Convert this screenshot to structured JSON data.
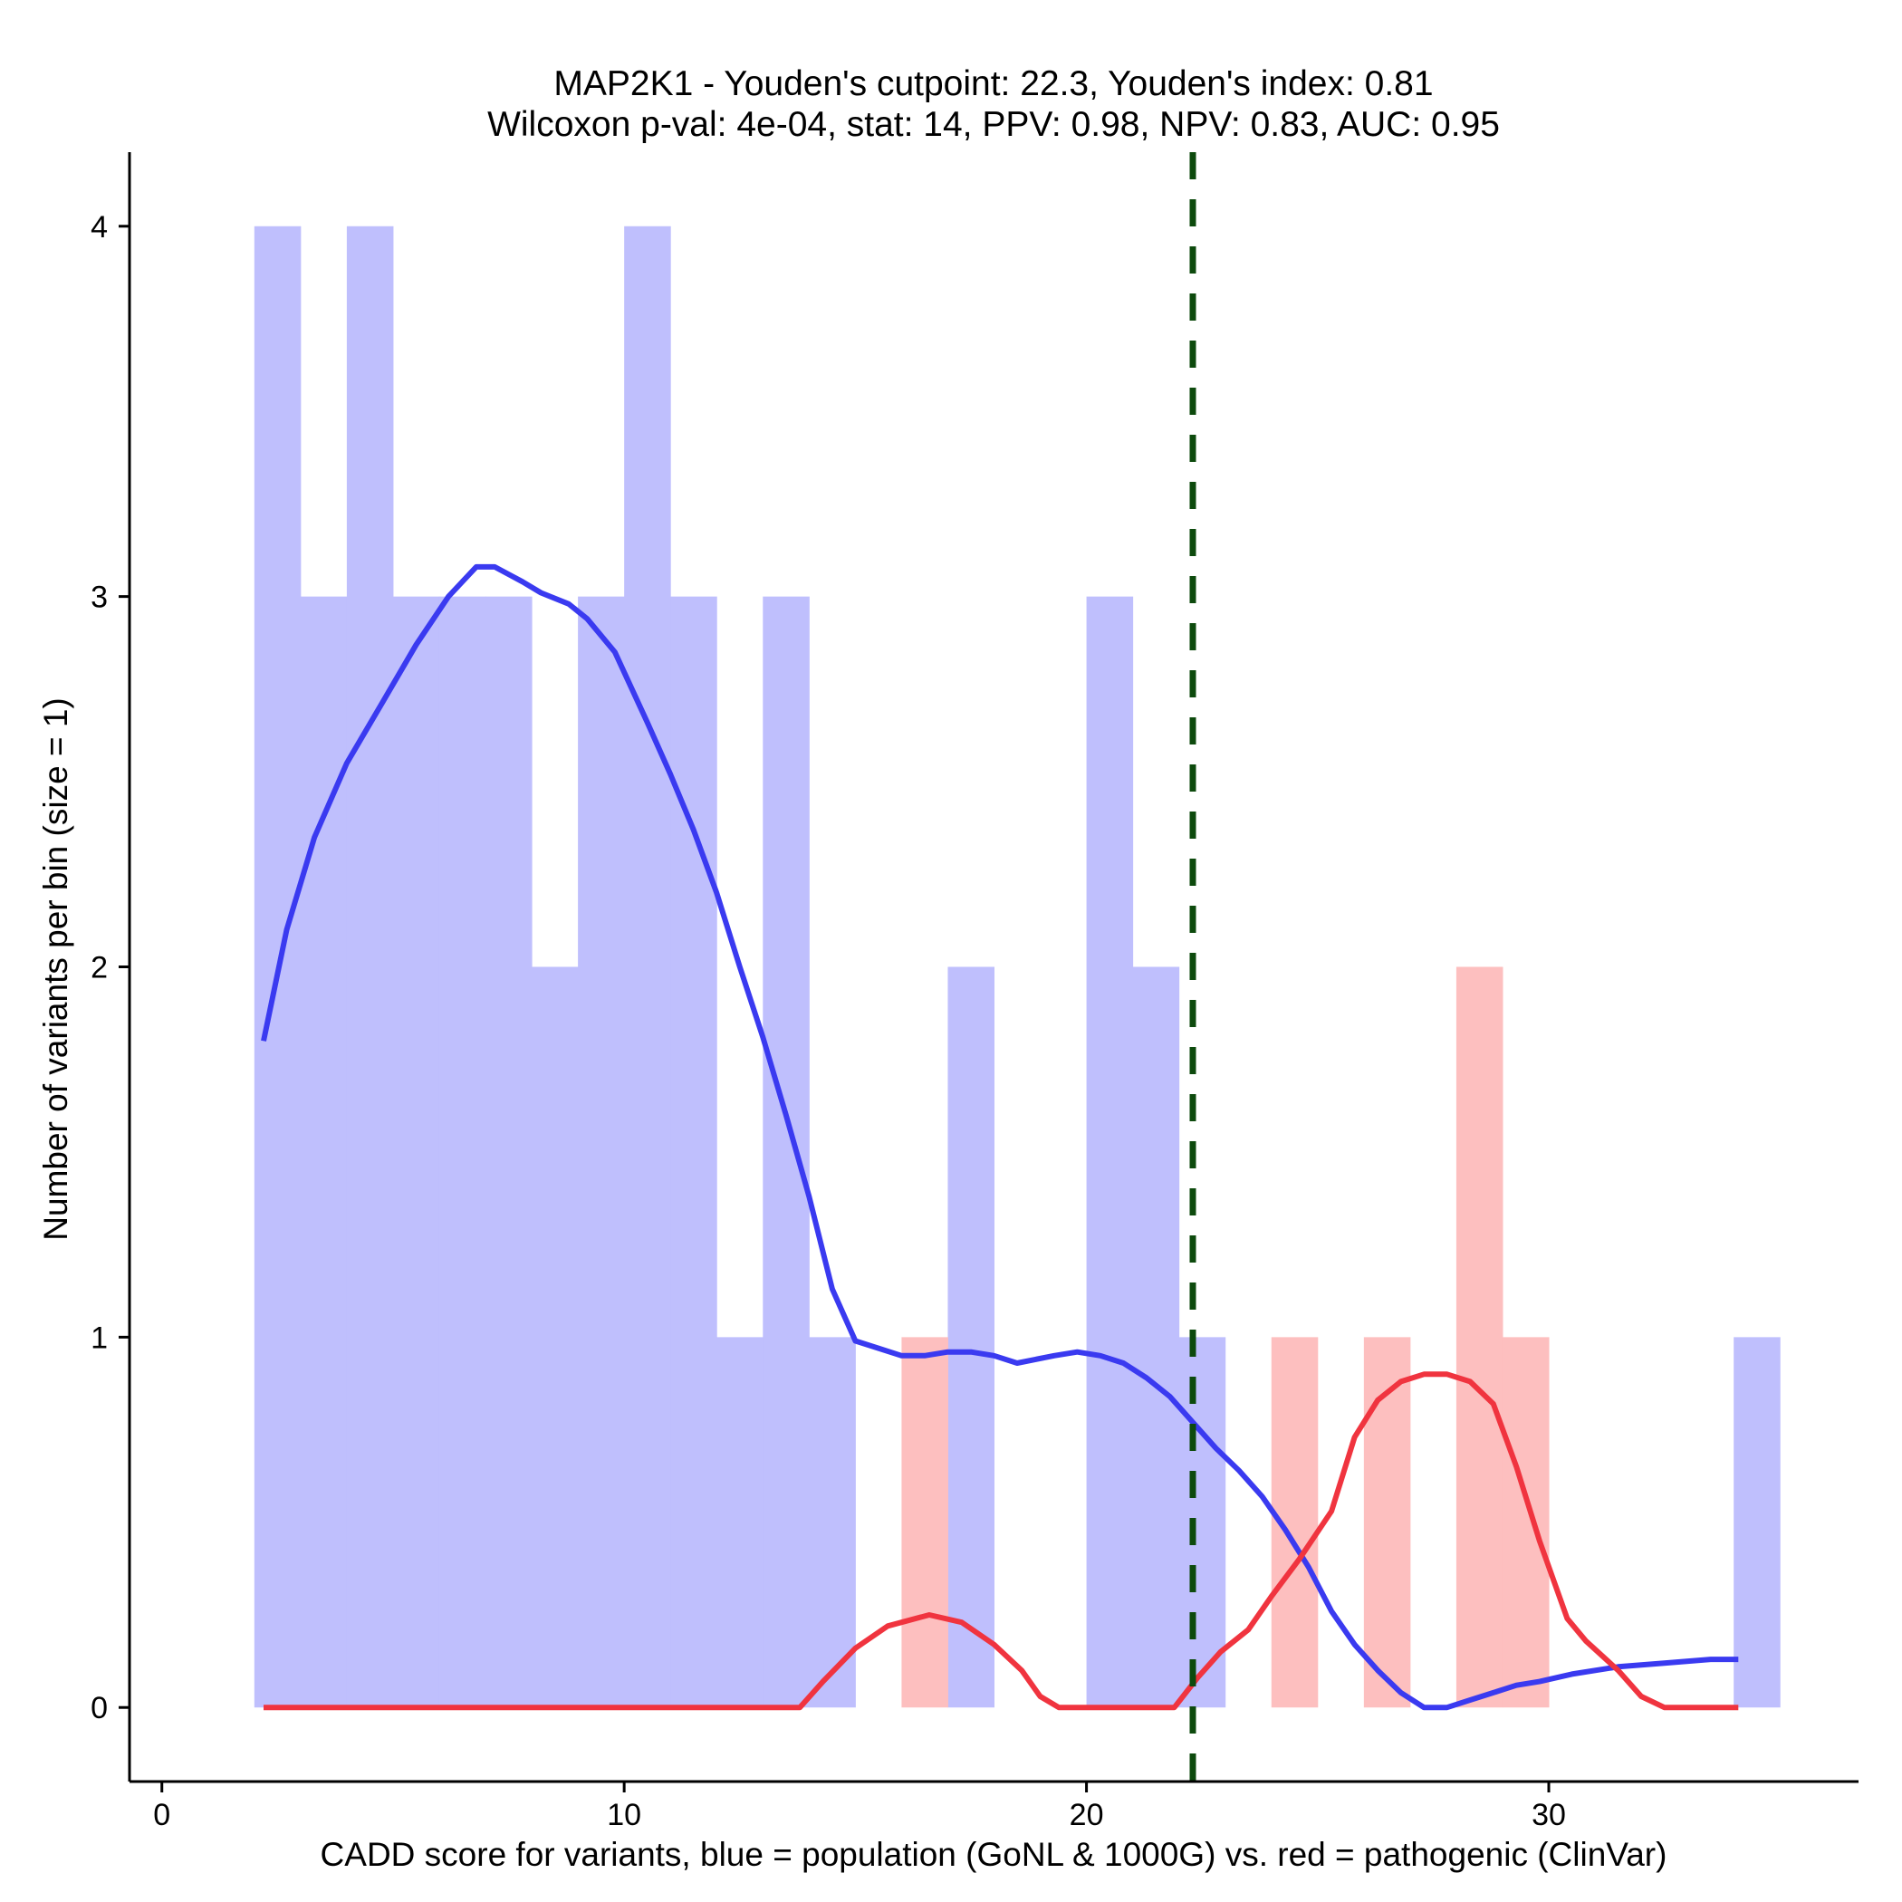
{
  "chart_data": {
    "type": "histogram",
    "title": "MAP2K1 - Youden's cutpoint: 22.3, Youden's index: 0.81",
    "subtitle": "Wilcoxon p-val: 4e-04, stat: 14, PPV: 0.98, NPV: 0.83, AUC: 0.95",
    "xlabel": "CADD score for variants, blue = population (GoNL & 1000G) vs. red = pathogenic (ClinVar)",
    "ylabel": "Number of variants per bin (size = 1)",
    "xlim": [
      -0.7,
      36.7
    ],
    "ylim": [
      -0.2,
      4.2
    ],
    "xticks": [
      0,
      10,
      20,
      30
    ],
    "yticks": [
      0,
      1,
      2,
      3,
      4
    ],
    "bin_width": 1,
    "cutpoint": 22.3,
    "colors": {
      "population_bar": "#bfbffd",
      "pathogenic_bar": "#fdbfbf",
      "population_line": "#3a3af0",
      "pathogenic_line": "#f0343f",
      "cutpoint_line": "#0d4a0d",
      "axis": "#000000"
    },
    "series": [
      {
        "name": "population (GoNL & 1000G)",
        "kind": "bars",
        "bins": [
          {
            "start": 2,
            "count": 4
          },
          {
            "start": 3,
            "count": 3
          },
          {
            "start": 4,
            "count": 4
          },
          {
            "start": 5,
            "count": 3
          },
          {
            "start": 6,
            "count": 3
          },
          {
            "start": 7,
            "count": 3
          },
          {
            "start": 8,
            "count": 2
          },
          {
            "start": 9,
            "count": 3
          },
          {
            "start": 10,
            "count": 4
          },
          {
            "start": 11,
            "count": 3
          },
          {
            "start": 12,
            "count": 1
          },
          {
            "start": 13,
            "count": 3
          },
          {
            "start": 14,
            "count": 1
          },
          {
            "start": 17,
            "count": 2
          },
          {
            "start": 20,
            "count": 3
          },
          {
            "start": 21,
            "count": 2
          },
          {
            "start": 22,
            "count": 1
          },
          {
            "start": 34,
            "count": 1
          }
        ]
      },
      {
        "name": "pathogenic (ClinVar)",
        "kind": "bars",
        "bins": [
          {
            "start": 16,
            "count": 1
          },
          {
            "start": 24,
            "count": 1
          },
          {
            "start": 26,
            "count": 1
          },
          {
            "start": 28,
            "count": 2
          },
          {
            "start": 29,
            "count": 1
          }
        ]
      },
      {
        "name": "population density",
        "kind": "line",
        "x": [
          2.2,
          2.7,
          3.3,
          4.0,
          4.8,
          5.5,
          6.2,
          6.8,
          7.2,
          7.5,
          7.8,
          8.2,
          8.8,
          9.2,
          9.8,
          10.5,
          11.0,
          11.5,
          12.0,
          12.5,
          13.0,
          13.5,
          14.0,
          14.5,
          15.0,
          15.5,
          16.0,
          16.5,
          17.0,
          17.5,
          18.0,
          18.5,
          18.9,
          19.3,
          19.8,
          20.3,
          20.8,
          21.3,
          21.8,
          22.3,
          22.8,
          23.3,
          23.8,
          24.3,
          24.8,
          25.3,
          25.8,
          26.3,
          26.8,
          27.3,
          27.8,
          28.3,
          28.8,
          29.3,
          29.8,
          30.5,
          31.5,
          32.5,
          33.5,
          34.1
        ],
        "y": [
          1.8,
          2.1,
          2.35,
          2.55,
          2.72,
          2.87,
          3.0,
          3.08,
          3.08,
          3.06,
          3.04,
          3.01,
          2.98,
          2.94,
          2.85,
          2.66,
          2.52,
          2.37,
          2.2,
          2.0,
          1.81,
          1.6,
          1.38,
          1.13,
          0.99,
          0.97,
          0.95,
          0.95,
          0.96,
          0.96,
          0.95,
          0.93,
          0.94,
          0.95,
          0.96,
          0.95,
          0.93,
          0.89,
          0.84,
          0.77,
          0.7,
          0.64,
          0.57,
          0.48,
          0.38,
          0.26,
          0.17,
          0.1,
          0.04,
          0.0,
          0.0,
          0.02,
          0.04,
          0.06,
          0.07,
          0.09,
          0.11,
          0.12,
          0.13,
          0.13
        ]
      },
      {
        "name": "pathogenic density",
        "kind": "line",
        "x": [
          2.2,
          13.8,
          14.3,
          15.0,
          15.7,
          16.6,
          17.3,
          18.0,
          18.6,
          19.0,
          19.4,
          20.2,
          21.0,
          21.9,
          22.4,
          22.9,
          23.5,
          24.0,
          24.6,
          25.3,
          25.8,
          26.3,
          26.8,
          27.3,
          27.8,
          28.3,
          28.8,
          29.3,
          29.8,
          30.4,
          30.8,
          31.5,
          32.0,
          32.5,
          34.1
        ],
        "y": [
          0.0,
          0.0,
          0.07,
          0.16,
          0.22,
          0.25,
          0.23,
          0.17,
          0.1,
          0.03,
          0.0,
          0.0,
          0.0,
          0.0,
          0.08,
          0.15,
          0.21,
          0.3,
          0.4,
          0.53,
          0.73,
          0.83,
          0.88,
          0.9,
          0.9,
          0.88,
          0.82,
          0.65,
          0.45,
          0.24,
          0.18,
          0.1,
          0.03,
          0.0,
          0.0
        ]
      }
    ]
  }
}
